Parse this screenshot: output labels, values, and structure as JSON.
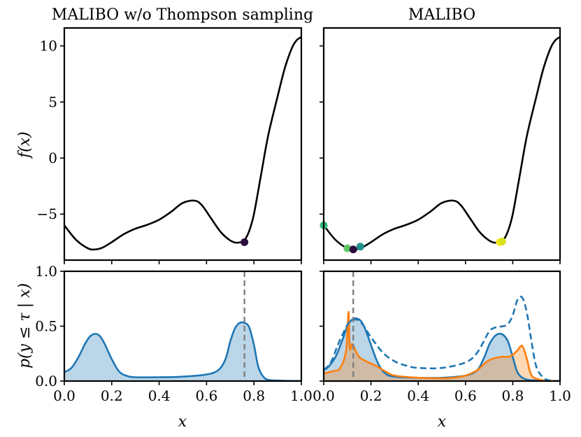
{
  "figure": {
    "left_title": "MALIBO w/o Thompson sampling",
    "right_title": "MALIBO",
    "xlabel": "x",
    "ylabel_top": "f(x)",
    "ylabel_bottom": "p(y ≤ τ | x)"
  },
  "chart_data": [
    {
      "id": "top-left",
      "type": "line",
      "title": "MALIBO w/o Thompson sampling",
      "xlabel": "",
      "ylabel": "f(x)",
      "xlim": [
        0,
        1
      ],
      "ylim": [
        -9.1,
        11.6
      ],
      "yticks": [
        -5,
        0,
        5,
        10
      ],
      "ytick_labels": [
        "−5",
        "0",
        "5",
        "10"
      ],
      "series": [
        {
          "name": "f(x)",
          "color": "#000000",
          "x": [
            0,
            0.05,
            0.1,
            0.13,
            0.16,
            0.2,
            0.25,
            0.3,
            0.35,
            0.4,
            0.45,
            0.5,
            0.55,
            0.58,
            0.62,
            0.66,
            0.7,
            0.73,
            0.76,
            0.78,
            0.8,
            0.83,
            0.86,
            0.9,
            0.93,
            0.96,
            0.98,
            1.0
          ],
          "y": [
            -6.0,
            -7.3,
            -8.05,
            -8.15,
            -8.0,
            -7.5,
            -6.8,
            -6.3,
            -5.95,
            -5.5,
            -4.8,
            -4.0,
            -3.8,
            -4.2,
            -5.4,
            -6.6,
            -7.35,
            -7.55,
            -7.3,
            -6.5,
            -5.0,
            -1.5,
            2.0,
            5.5,
            8.0,
            9.8,
            10.5,
            10.8
          ]
        }
      ],
      "points": [
        {
          "x": 0.76,
          "y": -7.5,
          "color": "#2b0d3f"
        }
      ]
    },
    {
      "id": "top-right",
      "type": "line",
      "title": "MALIBO",
      "xlabel": "",
      "ylabel": "",
      "xlim": [
        0,
        1
      ],
      "ylim": [
        -9.1,
        11.6
      ],
      "yticks": [
        -5,
        0,
        5,
        10
      ],
      "series": [
        {
          "name": "f(x)",
          "color": "#000000",
          "x": [
            0,
            0.05,
            0.1,
            0.13,
            0.16,
            0.2,
            0.25,
            0.3,
            0.35,
            0.4,
            0.45,
            0.5,
            0.55,
            0.58,
            0.62,
            0.66,
            0.7,
            0.73,
            0.76,
            0.78,
            0.8,
            0.83,
            0.86,
            0.9,
            0.93,
            0.96,
            0.98,
            1.0
          ],
          "y": [
            -6.0,
            -7.3,
            -8.05,
            -8.15,
            -8.0,
            -7.5,
            -6.8,
            -6.3,
            -5.95,
            -5.5,
            -4.8,
            -4.0,
            -3.8,
            -4.2,
            -5.4,
            -6.6,
            -7.35,
            -7.55,
            -7.3,
            -6.5,
            -5.0,
            -1.5,
            2.0,
            5.5,
            8.0,
            9.8,
            10.5,
            10.8
          ]
        }
      ],
      "points": [
        {
          "x": 0.0,
          "y": -6.0,
          "color": "#35b779"
        },
        {
          "x": 0.1,
          "y": -8.05,
          "color": "#5ec962"
        },
        {
          "x": 0.155,
          "y": -7.9,
          "color": "#21918c"
        },
        {
          "x": 0.745,
          "y": -7.5,
          "color": "#fde725"
        },
        {
          "x": 0.755,
          "y": -7.45,
          "color": "#d8e219"
        },
        {
          "x": 0.125,
          "y": -8.15,
          "color": "#2b0d3f"
        }
      ]
    },
    {
      "id": "bottom-left",
      "type": "area",
      "title": "",
      "xlabel": "x",
      "ylabel": "p(y ≤ τ | x)",
      "xlim": [
        0,
        1
      ],
      "ylim": [
        0,
        1.0
      ],
      "yticks": [
        0.0,
        0.5,
        1.0
      ],
      "ytick_labels": [
        "0.0",
        "0.5",
        "1.0"
      ],
      "xticks": [
        0.0,
        0.2,
        0.4,
        0.6,
        0.8,
        1.0
      ],
      "xtick_labels": [
        "0.0",
        "0.2",
        "0.4",
        "0.6",
        "0.8",
        "1.0"
      ],
      "vline": {
        "x": 0.76,
        "color": "#808080"
      },
      "series": [
        {
          "name": "probability",
          "color": "#1f77b4",
          "fill": "#1f77b4",
          "fill_opacity": 0.3,
          "dashed": false,
          "x": [
            0,
            0.03,
            0.06,
            0.09,
            0.11,
            0.13,
            0.15,
            0.17,
            0.2,
            0.23,
            0.26,
            0.3,
            0.4,
            0.5,
            0.6,
            0.65,
            0.68,
            0.7,
            0.72,
            0.74,
            0.76,
            0.78,
            0.8,
            0.82,
            0.85,
            0.9,
            0.95,
            1.0
          ],
          "y": [
            0.08,
            0.12,
            0.22,
            0.35,
            0.41,
            0.43,
            0.41,
            0.34,
            0.2,
            0.09,
            0.05,
            0.035,
            0.035,
            0.04,
            0.06,
            0.1,
            0.2,
            0.36,
            0.48,
            0.53,
            0.53,
            0.49,
            0.33,
            0.12,
            0.02,
            0.005,
            0.002,
            0.001
          ]
        }
      ]
    },
    {
      "id": "bottom-right",
      "type": "area",
      "title": "",
      "xlabel": "x",
      "ylabel": "",
      "xlim": [
        0,
        1
      ],
      "ylim": [
        0,
        1.0
      ],
      "yticks": [
        0.0,
        0.5,
        1.0
      ],
      "xticks": [
        0.0,
        0.2,
        0.4,
        0.6,
        0.8,
        1.0
      ],
      "xtick_labels": [
        "0.0",
        "0.2",
        "0.4",
        "0.6",
        "0.8",
        "1.0"
      ],
      "vline": {
        "x": 0.125,
        "color": "#808080"
      },
      "series": [
        {
          "name": "blue-filled",
          "color": "#1f77b4",
          "fill": "#1f77b4",
          "fill_opacity": 0.3,
          "dashed": false,
          "x": [
            0,
            0.02,
            0.05,
            0.08,
            0.1,
            0.12,
            0.14,
            0.16,
            0.18,
            0.2,
            0.23,
            0.26,
            0.3,
            0.4,
            0.5,
            0.6,
            0.65,
            0.68,
            0.7,
            0.72,
            0.74,
            0.76,
            0.78,
            0.8,
            0.82,
            0.85,
            0.9,
            1.0
          ],
          "y": [
            0.1,
            0.13,
            0.22,
            0.38,
            0.5,
            0.56,
            0.57,
            0.54,
            0.45,
            0.33,
            0.16,
            0.07,
            0.04,
            0.03,
            0.03,
            0.05,
            0.1,
            0.22,
            0.33,
            0.4,
            0.43,
            0.42,
            0.36,
            0.22,
            0.08,
            0.02,
            0.005,
            0.001
          ]
        },
        {
          "name": "orange-filled",
          "color": "#ff7f0e",
          "fill": "#ff7f0e",
          "fill_opacity": 0.3,
          "dashed": false,
          "x": [
            0,
            0.04,
            0.07,
            0.095,
            0.105,
            0.11,
            0.12,
            0.13,
            0.15,
            0.18,
            0.22,
            0.26,
            0.3,
            0.4,
            0.5,
            0.55,
            0.6,
            0.65,
            0.7,
            0.75,
            0.78,
            0.8,
            0.82,
            0.84,
            0.86,
            0.88,
            0.92,
            0.96,
            1.0
          ],
          "y": [
            0.07,
            0.09,
            0.12,
            0.28,
            0.63,
            0.3,
            0.34,
            0.3,
            0.22,
            0.18,
            0.14,
            0.09,
            0.05,
            0.03,
            0.025,
            0.03,
            0.05,
            0.1,
            0.19,
            0.22,
            0.22,
            0.24,
            0.28,
            0.32,
            0.2,
            0.05,
            0.01,
            0.002,
            0.0
          ]
        },
        {
          "name": "blue-dashed",
          "color": "#1f77b4",
          "fill": "none",
          "fill_opacity": 0,
          "dashed": true,
          "x": [
            0,
            0.03,
            0.06,
            0.09,
            0.11,
            0.13,
            0.15,
            0.17,
            0.2,
            0.25,
            0.3,
            0.35,
            0.4,
            0.5,
            0.6,
            0.65,
            0.7,
            0.73,
            0.76,
            0.78,
            0.8,
            0.82,
            0.84,
            0.86,
            0.88,
            0.9,
            0.93,
            0.96,
            1.0
          ],
          "y": [
            0.1,
            0.17,
            0.33,
            0.47,
            0.54,
            0.56,
            0.55,
            0.5,
            0.4,
            0.26,
            0.18,
            0.14,
            0.12,
            0.12,
            0.17,
            0.26,
            0.45,
            0.49,
            0.5,
            0.52,
            0.6,
            0.74,
            0.76,
            0.62,
            0.35,
            0.13,
            0.03,
            0.005,
            0.001
          ]
        }
      ]
    }
  ]
}
